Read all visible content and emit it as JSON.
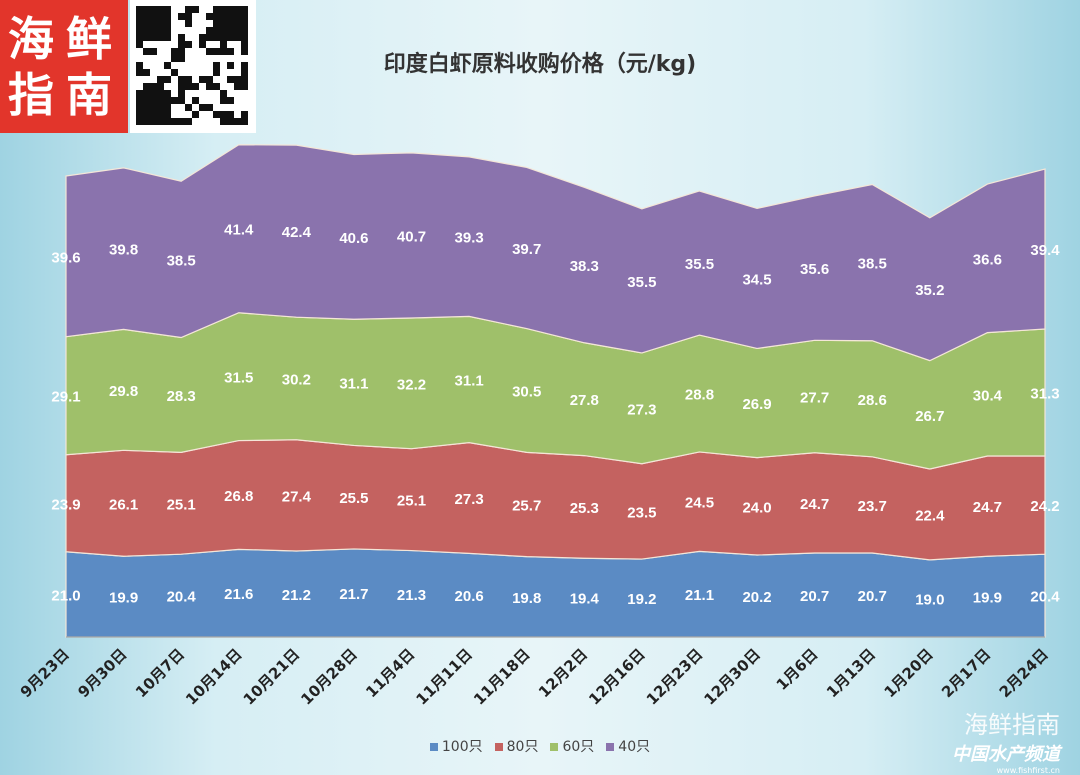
{
  "logo": {
    "text": "海鲜指南"
  },
  "watermark": {
    "brand": "海鲜指南",
    "channel": "中国水产频道",
    "url": "www.fishfirst.cn"
  },
  "chart_data": {
    "type": "area",
    "stacked": true,
    "title": "印度白虾原料收购价格（元/kg)",
    "xlabel": "",
    "ylabel": "",
    "ylim": [
      0,
      120
    ],
    "grid": false,
    "legend_position": "bottom",
    "categories": [
      "9月23日",
      "9月30日",
      "10月7日",
      "10月14日",
      "10月21日",
      "10月28日",
      "11月4日",
      "11月11日",
      "11月18日",
      "12月2日",
      "12月16日",
      "12月23日",
      "12月30日",
      "1月6日",
      "1月13日",
      "1月20日",
      "2月17日",
      "2月24日"
    ],
    "series": [
      {
        "name": "100只",
        "color": "#5b8bc4",
        "values": [
          21.0,
          19.9,
          20.4,
          21.6,
          21.2,
          21.7,
          21.3,
          20.6,
          19.8,
          19.4,
          19.2,
          21.1,
          20.2,
          20.7,
          20.7,
          19.0,
          19.9,
          20.4
        ]
      },
      {
        "name": "80只",
        "color": "#c46260",
        "values": [
          23.9,
          26.1,
          25.1,
          26.8,
          27.4,
          25.5,
          25.1,
          27.3,
          25.7,
          25.3,
          23.5,
          24.5,
          24.0,
          24.7,
          23.7,
          22.4,
          24.7,
          24.2
        ]
      },
      {
        "name": "60只",
        "color": "#9fc06a",
        "values": [
          29.1,
          29.8,
          28.3,
          31.5,
          30.2,
          31.1,
          32.2,
          31.1,
          30.5,
          27.8,
          27.3,
          28.8,
          26.9,
          27.7,
          28.6,
          26.7,
          30.4,
          31.3
        ]
      },
      {
        "name": "40只",
        "color": "#8a73ad",
        "values": [
          39.6,
          39.8,
          38.5,
          41.4,
          42.4,
          40.6,
          40.7,
          39.3,
          39.7,
          38.3,
          35.5,
          35.5,
          34.5,
          35.6,
          38.5,
          35.2,
          36.6,
          39.4
        ]
      }
    ]
  }
}
